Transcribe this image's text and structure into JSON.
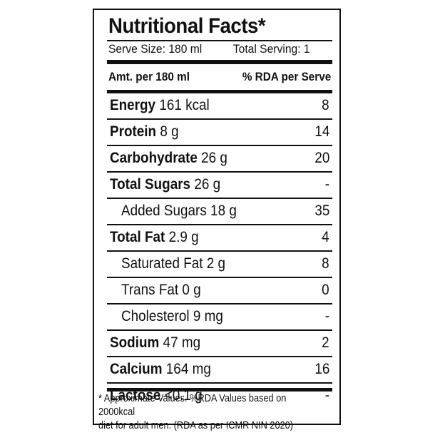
{
  "title": "Nutritional Facts*",
  "serve_size": "Serve Size: 180 ml",
  "total_serving": "Total Serving: 1",
  "header_left": "Amt. per 180 ml",
  "header_right": "% RDA per Serve",
  "rows": [
    {
      "name": "Energy",
      "amount": "161 kcal",
      "rda": "8",
      "bold": true
    },
    {
      "name": "Protein",
      "amount": "8 g",
      "rda": "14",
      "bold": true
    },
    {
      "name": "Carbohydrate",
      "amount": "26 g",
      "rda": "20",
      "bold": true
    },
    {
      "name": "Total Sugars",
      "amount": "26 g",
      "rda": "-",
      "bold": true
    },
    {
      "name": "Added Sugars",
      "amount": "18 g",
      "rda": "35",
      "bold": false
    },
    {
      "name": "Total Fat",
      "amount": "2.9 g",
      "rda": "4",
      "bold": true
    },
    {
      "name": "Saturated Fat",
      "amount": "2 g",
      "rda": "8",
      "bold": false
    },
    {
      "name": "Trans Fat",
      "amount": "0 g",
      "rda": "0",
      "bold": false
    },
    {
      "name": "Cholesterol",
      "amount": "9 mg",
      "rda": "-",
      "bold": false
    },
    {
      "name": "Sodium",
      "amount": "47 mg",
      "rda": "2",
      "bold": true
    },
    {
      "name": "Calcium",
      "amount": "164 mg",
      "rda": "16",
      "bold": true
    },
    {
      "name": "Lactose",
      "amount": "<0.1 g",
      "rda": "-",
      "bold": true
    }
  ],
  "footnote_line1": "* Approximate Values. %RDA Values based on 2000kcal",
  "footnote_line2": "diet for adult men. (RDA as per ICMR NIN 2020)"
}
